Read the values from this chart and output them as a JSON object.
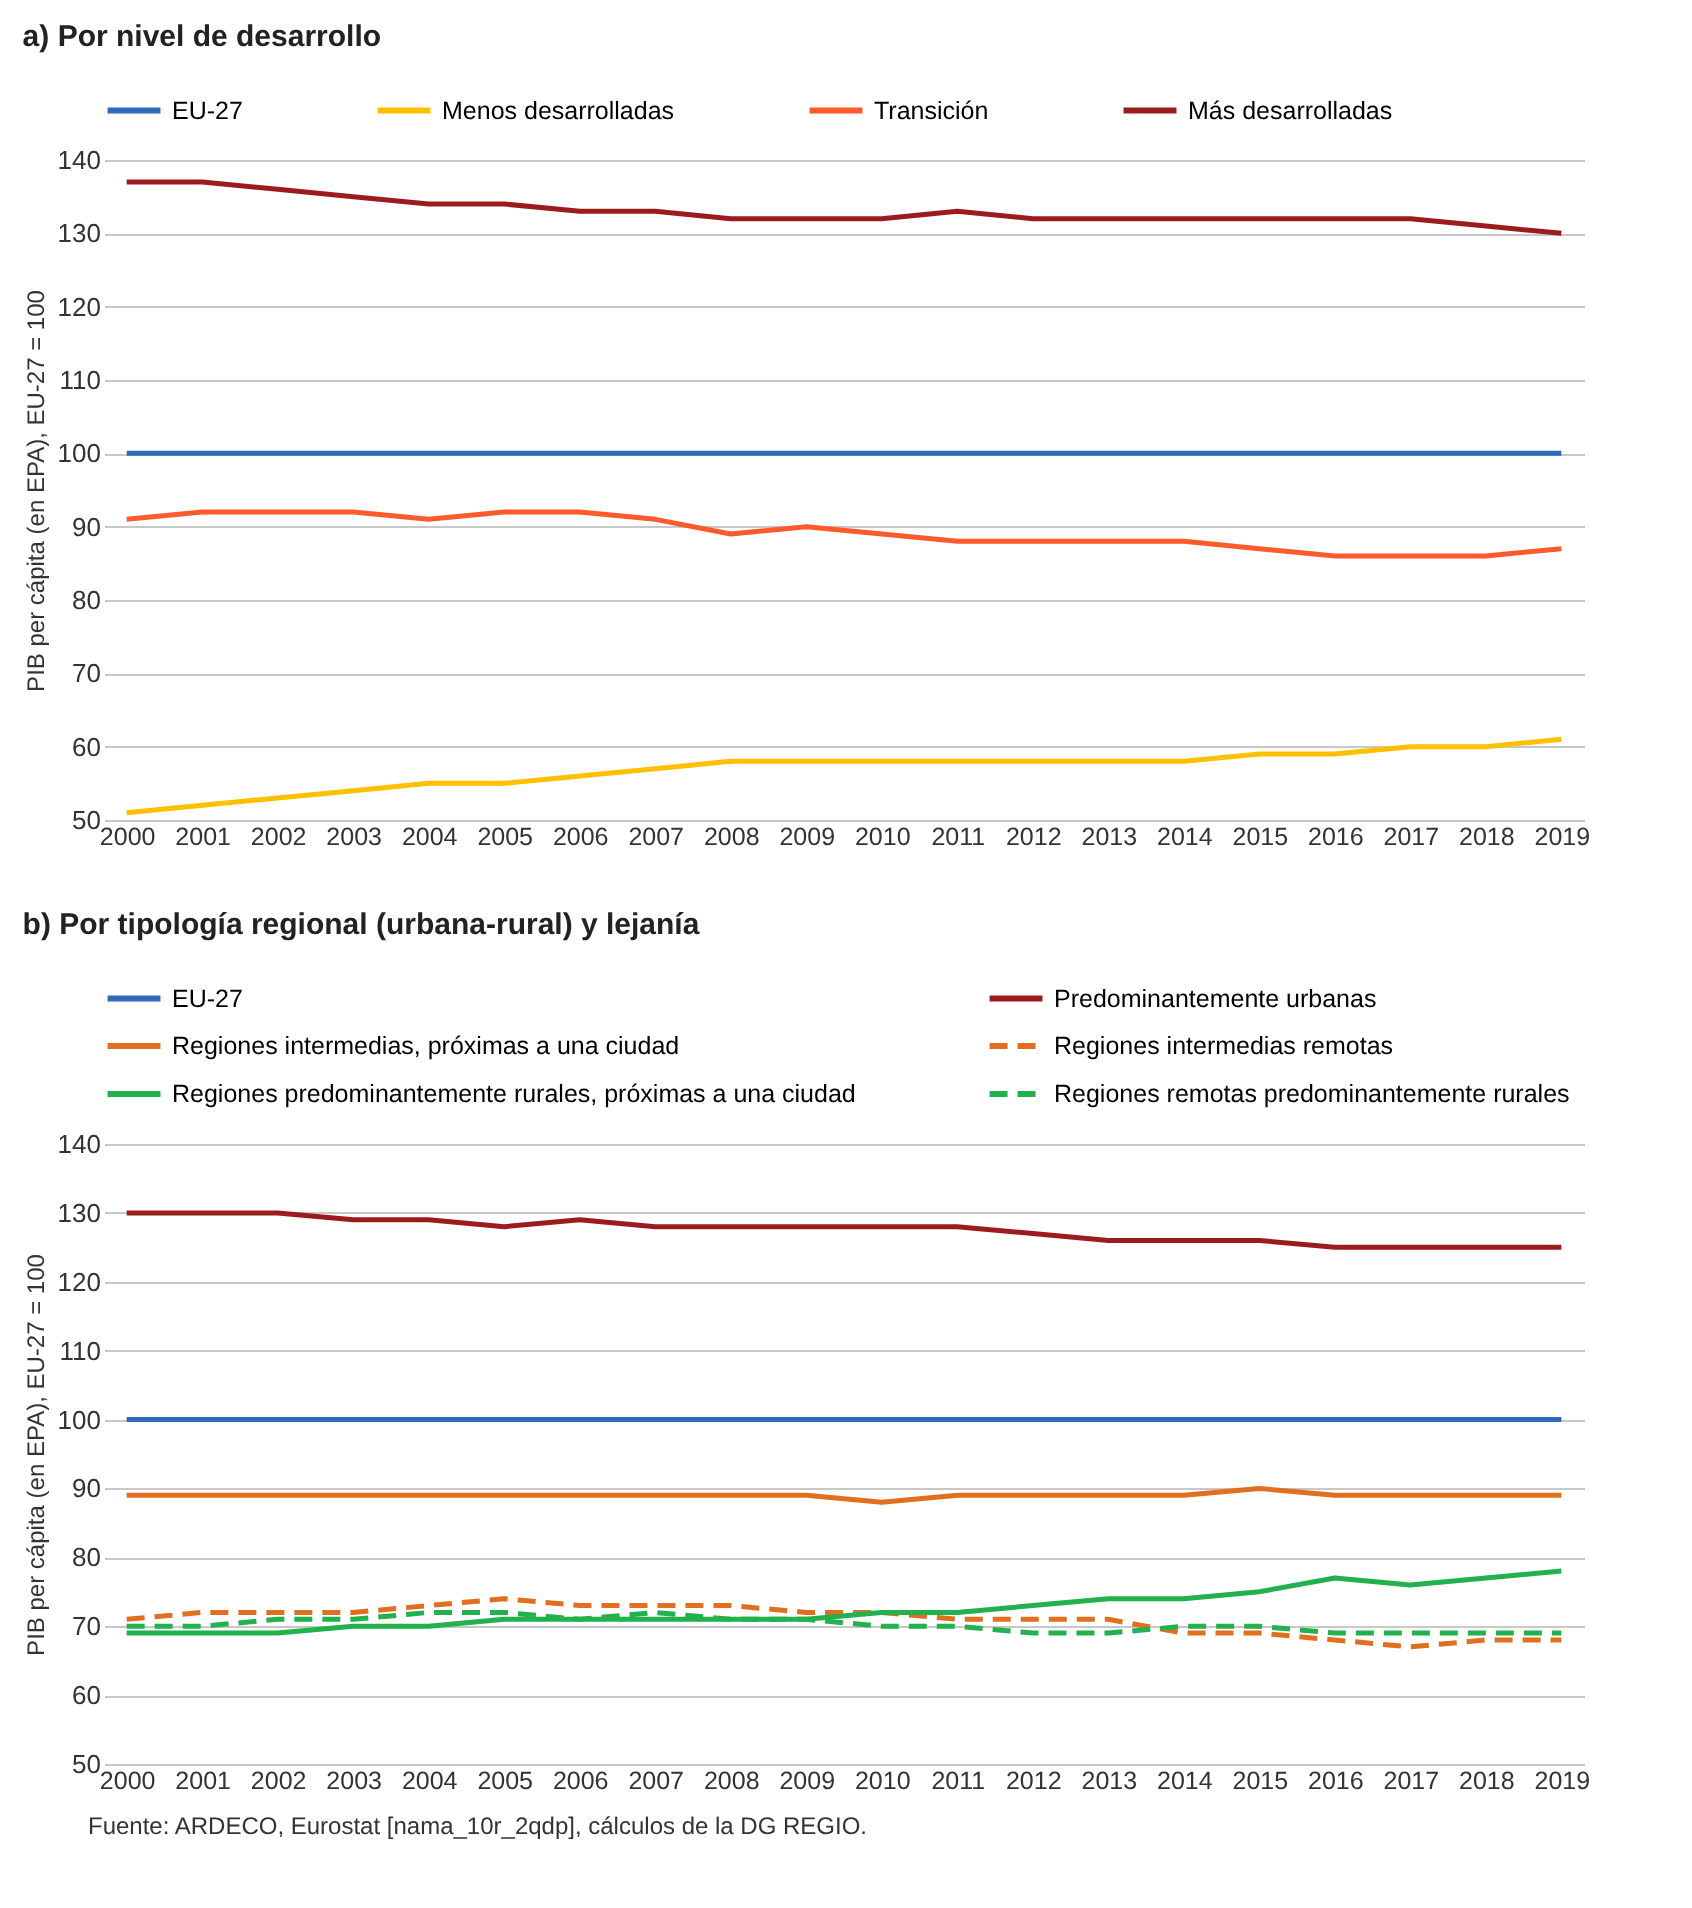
{
  "chart_data": [
    {
      "type": "line",
      "title": "a) Por nivel de desarrollo",
      "ylabel": "PIB per cápita (en EPA), EU-27 = 100",
      "categories": [
        "2000",
        "2001",
        "2002",
        "2003",
        "2004",
        "2005",
        "2006",
        "2007",
        "2008",
        "2009",
        "2010",
        "2011",
        "2012",
        "2013",
        "2014",
        "2015",
        "2016",
        "2017",
        "2018",
        "2019"
      ],
      "ylim": [
        50,
        140
      ],
      "yticks": [
        50,
        60,
        70,
        80,
        90,
        100,
        110,
        120,
        130,
        140
      ],
      "grid": "y",
      "legend": "top",
      "series": [
        {
          "name": "EU-27",
          "color": "#2e6ab8",
          "values": [
            100,
            100,
            100,
            100,
            100,
            100,
            100,
            100,
            100,
            100,
            100,
            100,
            100,
            100,
            100,
            100,
            100,
            100,
            100,
            100
          ]
        },
        {
          "name": "Menos desarrolladas",
          "color": "#ffc000",
          "values": [
            51,
            52,
            53,
            54,
            55,
            55,
            56,
            57,
            58,
            58,
            58,
            58,
            58,
            58,
            58,
            59,
            59,
            60,
            60,
            61
          ]
        },
        {
          "name": "Transición",
          "color": "#ff5a2c",
          "values": [
            91,
            92,
            92,
            92,
            91,
            92,
            92,
            91,
            89,
            90,
            89,
            88,
            88,
            88,
            88,
            87,
            86,
            86,
            86,
            87
          ]
        },
        {
          "name": "Más desarrolladas",
          "color": "#9b1b1f",
          "values": [
            137,
            137,
            136,
            135,
            134,
            134,
            133,
            133,
            132,
            132,
            132,
            133,
            132,
            132,
            132,
            132,
            132,
            132,
            131,
            130
          ]
        }
      ]
    },
    {
      "type": "line",
      "title": "b) Por tipología regional (urbana-rural) y lejanía",
      "ylabel": "PIB per cápita (en EPA), EU-27 = 100",
      "categories": [
        "2000",
        "2001",
        "2002",
        "2003",
        "2004",
        "2005",
        "2006",
        "2007",
        "2008",
        "2009",
        "2010",
        "2011",
        "2012",
        "2013",
        "2014",
        "2015",
        "2016",
        "2017",
        "2018",
        "2019"
      ],
      "ylim": [
        50,
        140
      ],
      "yticks": [
        50,
        60,
        70,
        80,
        90,
        100,
        110,
        120,
        130,
        140
      ],
      "grid": "y",
      "legend": "top",
      "annotations": [
        "Fuente: ARDECO, Eurostat [nama_10r_2qdp], cálculos de la DG REGIO."
      ],
      "series": [
        {
          "name": "EU-27",
          "color": "#2e6ab8",
          "values": [
            100,
            100,
            100,
            100,
            100,
            100,
            100,
            100,
            100,
            100,
            100,
            100,
            100,
            100,
            100,
            100,
            100,
            100,
            100,
            100
          ]
        },
        {
          "name": "Predominantemente urbanas",
          "color": "#9b1b1f",
          "values": [
            130,
            130,
            130,
            129,
            129,
            128,
            129,
            128,
            128,
            128,
            128,
            128,
            127,
            126,
            126,
            126,
            125,
            125,
            125,
            125
          ]
        },
        {
          "name": "Regiones intermedias, próximas a una ciudad",
          "color": "#e07020",
          "values": [
            89,
            89,
            89,
            89,
            89,
            89,
            89,
            89,
            89,
            89,
            88,
            89,
            89,
            89,
            89,
            90,
            89,
            89,
            89,
            89
          ]
        },
        {
          "name": "Regiones intermedias remotas",
          "color": "#e07020",
          "line_style": "dashed",
          "values": [
            71,
            72,
            72,
            72,
            73,
            74,
            73,
            73,
            73,
            72,
            72,
            71,
            71,
            71,
            69,
            69,
            68,
            67,
            68,
            68
          ]
        },
        {
          "name": "Regiones predominantemente rurales, próximas a una ciudad",
          "color": "#22b14c",
          "values": [
            69,
            69,
            69,
            70,
            70,
            71,
            71,
            71,
            71,
            71,
            72,
            72,
            73,
            74,
            74,
            75,
            77,
            76,
            77,
            78
          ]
        },
        {
          "name": "Regiones remotas predominantemente rurales",
          "color": "#22b14c",
          "line_style": "dashed",
          "values": [
            70,
            70,
            71,
            71,
            72,
            72,
            71,
            72,
            71,
            71,
            70,
            70,
            69,
            69,
            70,
            70,
            69,
            69,
            69,
            69
          ]
        }
      ]
    }
  ]
}
